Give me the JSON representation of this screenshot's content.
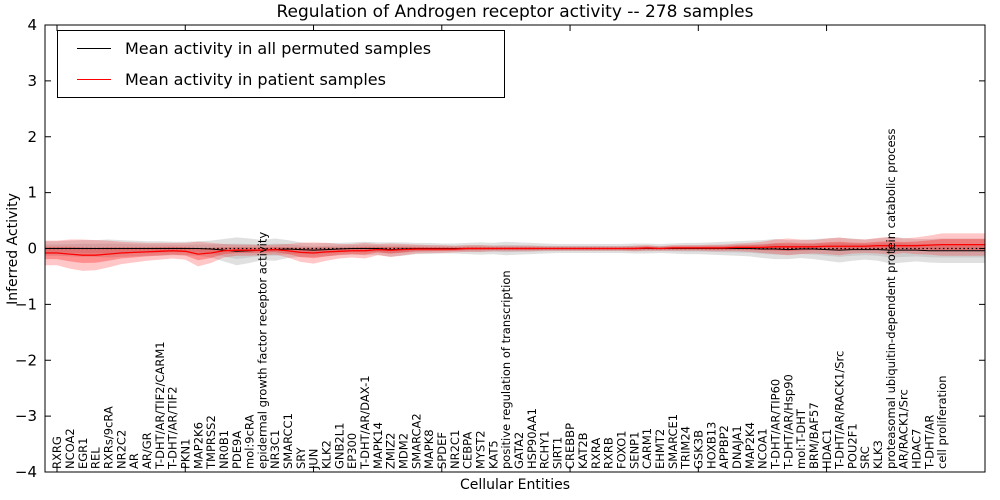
{
  "chart_data": {
    "type": "line",
    "title": "Regulation of Androgen receptor activity -- 278 samples",
    "xlabel": "Cellular Entities",
    "ylabel": "Inferred Activity",
    "ylim": [
      -4,
      4
    ],
    "yticks": [
      "4",
      "3",
      "2",
      "1",
      "0",
      "−1",
      "−2",
      "−3",
      "−4"
    ],
    "ytick_values": [
      4,
      3,
      2,
      1,
      0,
      -1,
      -2,
      -3,
      -4
    ],
    "grid": false,
    "legend_position": "upper left",
    "legend": [
      {
        "label": "Mean activity in all permuted samples",
        "color": "#000000"
      },
      {
        "label": "Mean activity in patient samples",
        "color": "#ff0000"
      }
    ],
    "colors": {
      "permuted_line": "#000000",
      "patient_line": "#ff0000",
      "permuted_band": "#999999",
      "patient_band": "#ff0000",
      "zero_reference": "#000000"
    },
    "categories": [
      "RXRG",
      "NCOA2",
      "EGR1",
      "REL",
      "RXRs/9cRA",
      "NR2C2",
      "AR",
      "AR/GR",
      "T-DHT/AR/TIF2/CARM1",
      "T-DHT/AR/TIF2",
      "PKN1",
      "MAP2K6",
      "TMPRSS2",
      "NR0B1",
      "PDE9A",
      "mol:9cRA",
      "epidermal growth factor receptor activity",
      "NR3C1",
      "SMARCC1",
      "SRY",
      "JUN",
      "KLK2",
      "GNB2L1",
      "EP300",
      "T-DHT/AR/DAX-1",
      "MAPK14",
      "ZMIZ2",
      "MDM2",
      "SMARCA2",
      "MAPK8",
      "SPDEF",
      "NR2C1",
      "CEBPA",
      "MYST2",
      "KAT5",
      "positive regulation of transcription",
      "GATA2",
      "HSP90AA1",
      "RCHY1",
      "SIRT1",
      "CREBBP",
      "KAT2B",
      "RXRA",
      "RXRB",
      "FOXO1",
      "SENP1",
      "CARM1",
      "EHMT2",
      "SMARCE1",
      "TRIM24",
      "GSK3B",
      "HOXB13",
      "APPBP2",
      "DNAJA1",
      "MAP2K4",
      "NCOA1",
      "T-DHT/AR/TIP60",
      "T-DHT/AR/Hsp90",
      "mol:T-DHT",
      "BRM/BAF57",
      "HDAC1",
      "T-DHT/AR/RACK1/Src",
      "POU2F1",
      "SRC",
      "KLK3",
      "proteasomal ubiquitin-dependent protein catabolic process",
      "AR/RACK1/Src",
      "HDAC7",
      "T-DHT/AR",
      "cell proliferation"
    ],
    "series": [
      {
        "name": "Mean activity in all permuted samples",
        "values": [
          0,
          0,
          0,
          0,
          0,
          0,
          0,
          0,
          0,
          0,
          0,
          0,
          -0.01,
          -0.03,
          -0.05,
          -0.04,
          -0.03,
          -0.02,
          -0.01,
          -0.02,
          -0.03,
          -0.02,
          -0.01,
          0,
          0,
          0,
          -0.02,
          -0.01,
          0,
          0,
          0,
          0,
          0,
          0,
          0,
          0,
          0,
          0,
          0,
          0,
          0,
          0,
          0,
          0,
          0,
          0,
          0,
          0,
          0,
          0,
          0,
          0,
          0,
          0,
          0,
          -0.01,
          -0.01,
          -0.02,
          -0.01,
          -0.01,
          -0.02,
          -0.03,
          -0.02,
          -0.02,
          -0.02,
          -0.03,
          -0.03,
          -0.03,
          -0.04,
          -0.04
        ]
      },
      {
        "name": "Mean activity in patient samples",
        "values": [
          -0.08,
          -0.1,
          -0.12,
          -0.12,
          -0.1,
          -0.08,
          -0.07,
          -0.06,
          -0.05,
          -0.04,
          -0.05,
          -0.1,
          -0.08,
          -0.04,
          -0.03,
          -0.03,
          -0.03,
          -0.02,
          -0.04,
          -0.07,
          -0.08,
          -0.06,
          -0.05,
          -0.04,
          -0.04,
          -0.02,
          -0.03,
          -0.02,
          -0.01,
          -0.01,
          -0.01,
          -0.01,
          0,
          0,
          0,
          0,
          0,
          0,
          0,
          0,
          0,
          0,
          0,
          0,
          0,
          0,
          0.01,
          0,
          0.01,
          0.01,
          0.01,
          0.01,
          0.01,
          0.02,
          0.02,
          0.02,
          0.03,
          0.03,
          0.03,
          0.03,
          0.04,
          0.04,
          0.04,
          0.04,
          0.05,
          0.05,
          0.05,
          0.05,
          0.06,
          0.07
        ]
      }
    ],
    "bands": {
      "permuted_halfwidth": [
        0.13,
        0.14,
        0.15,
        0.15,
        0.16,
        0.15,
        0.14,
        0.13,
        0.13,
        0.12,
        0.12,
        0.13,
        0.15,
        0.2,
        0.25,
        0.22,
        0.18,
        0.2,
        0.16,
        0.13,
        0.12,
        0.12,
        0.11,
        0.11,
        0.12,
        0.11,
        0.13,
        0.12,
        0.1,
        0.1,
        0.09,
        0.09,
        0.1,
        0.11,
        0.1,
        0.12,
        0.11,
        0.1,
        0.09,
        0.08,
        0.08,
        0.08,
        0.08,
        0.08,
        0.08,
        0.09,
        0.09,
        0.08,
        0.09,
        0.1,
        0.1,
        0.11,
        0.12,
        0.13,
        0.14,
        0.16,
        0.18,
        0.17,
        0.16,
        0.18,
        0.2,
        0.22,
        0.2,
        0.18,
        0.2,
        0.24,
        0.22,
        0.2,
        0.21,
        0.22
      ],
      "patient_halfwidth": [
        0.22,
        0.26,
        0.28,
        0.27,
        0.24,
        0.2,
        0.18,
        0.16,
        0.15,
        0.14,
        0.15,
        0.22,
        0.18,
        0.12,
        0.1,
        0.1,
        0.09,
        0.09,
        0.12,
        0.17,
        0.19,
        0.16,
        0.13,
        0.12,
        0.14,
        0.1,
        0.12,
        0.1,
        0.08,
        0.07,
        0.07,
        0.06,
        0.06,
        0.06,
        0.05,
        0.05,
        0.05,
        0.05,
        0.04,
        0.04,
        0.04,
        0.04,
        0.04,
        0.04,
        0.04,
        0.05,
        0.05,
        0.04,
        0.05,
        0.05,
        0.05,
        0.06,
        0.06,
        0.07,
        0.08,
        0.1,
        0.13,
        0.15,
        0.13,
        0.12,
        0.14,
        0.16,
        0.13,
        0.12,
        0.14,
        0.16,
        0.13,
        0.15,
        0.17,
        0.2
      ]
    }
  }
}
